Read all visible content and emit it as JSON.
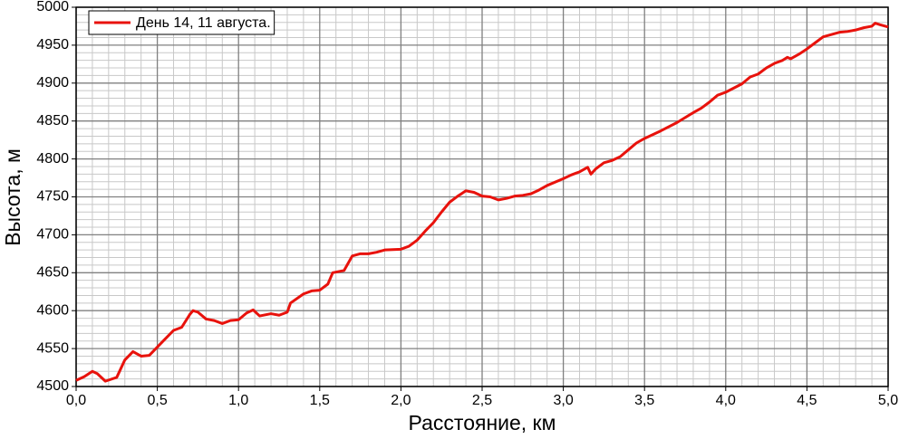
{
  "chart_data": {
    "type": "line",
    "x_label": "Расстояние, км",
    "y_label": "Высота, м",
    "xlim": [
      0,
      5
    ],
    "ylim": [
      4500,
      5000
    ],
    "xticks": [
      {
        "value": 0,
        "label": "0,0"
      },
      {
        "value": 0.5,
        "label": "0,5"
      },
      {
        "value": 1,
        "label": "1,0"
      },
      {
        "value": 1.5,
        "label": "1,5"
      },
      {
        "value": 2,
        "label": "2,0"
      },
      {
        "value": 2.5,
        "label": "2,5"
      },
      {
        "value": 3,
        "label": "3,0"
      },
      {
        "value": 3.5,
        "label": "3,5"
      },
      {
        "value": 4,
        "label": "4,0"
      },
      {
        "value": 4.5,
        "label": "4,5"
      },
      {
        "value": 5,
        "label": "5,0"
      }
    ],
    "yticks": [
      4500,
      4550,
      4600,
      4650,
      4700,
      4750,
      4800,
      4850,
      4900,
      4950,
      5000
    ],
    "grid": true,
    "legend": "upper left",
    "x": [
      0,
      0.05,
      0.1,
      0.13,
      0.18,
      0.25,
      0.3,
      0.35,
      0.4,
      0.45,
      0.5,
      0.55,
      0.6,
      0.65,
      0.7,
      0.72,
      0.75,
      0.8,
      0.85,
      0.9,
      0.95,
      1.0,
      1.05,
      1.09,
      1.13,
      1.2,
      1.25,
      1.3,
      1.32,
      1.4,
      1.45,
      1.5,
      1.55,
      1.58,
      1.65,
      1.7,
      1.75,
      1.8,
      1.85,
      1.9,
      2.0,
      2.05,
      2.1,
      2.15,
      2.2,
      2.25,
      2.3,
      2.35,
      2.4,
      2.45,
      2.5,
      2.55,
      2.6,
      2.65,
      2.7,
      2.75,
      2.8,
      2.85,
      2.9,
      3.0,
      3.05,
      3.1,
      3.15,
      3.17,
      3.2,
      3.25,
      3.3,
      3.35,
      3.4,
      3.45,
      3.5,
      3.6,
      3.7,
      3.8,
      3.85,
      3.9,
      3.95,
      4.0,
      4.1,
      4.15,
      4.2,
      4.25,
      4.3,
      4.35,
      4.38,
      4.4,
      4.45,
      4.5,
      4.55,
      4.6,
      4.65,
      4.7,
      4.75,
      4.8,
      4.85,
      4.9,
      4.92,
      4.95,
      5.0
    ],
    "series": [
      {
        "name": "День 14, 11 августа.",
        "color": "#e8120c",
        "values": [
          4508,
          4513,
          4520,
          4517,
          4507,
          4512,
          4535,
          4546,
          4540,
          4541,
          4552,
          4563,
          4574,
          4578,
          4595,
          4600,
          4598,
          4589,
          4587,
          4583,
          4587,
          4588,
          4597,
          4601,
          4593,
          4596,
          4594,
          4598,
          4610,
          4622,
          4626,
          4627,
          4635,
          4650,
          4653,
          4672,
          4675,
          4675,
          4677,
          4680,
          4681,
          4685,
          4693,
          4705,
          4716,
          4730,
          4743,
          4751,
          4758,
          4756,
          4751,
          4750,
          4746,
          4748,
          4751,
          4752,
          4754,
          4759,
          4765,
          4774,
          4779,
          4783,
          4789,
          4780,
          4787,
          4795,
          4798,
          4803,
          4812,
          4821,
          4827,
          4837,
          4848,
          4861,
          4867,
          4875,
          4884,
          4888,
          4899,
          4908,
          4912,
          4920,
          4926,
          4930,
          4934,
          4932,
          4938,
          4945,
          4953,
          4961,
          4964,
          4967,
          4968,
          4970,
          4973,
          4975,
          4979,
          4977,
          4974
        ]
      }
    ]
  }
}
